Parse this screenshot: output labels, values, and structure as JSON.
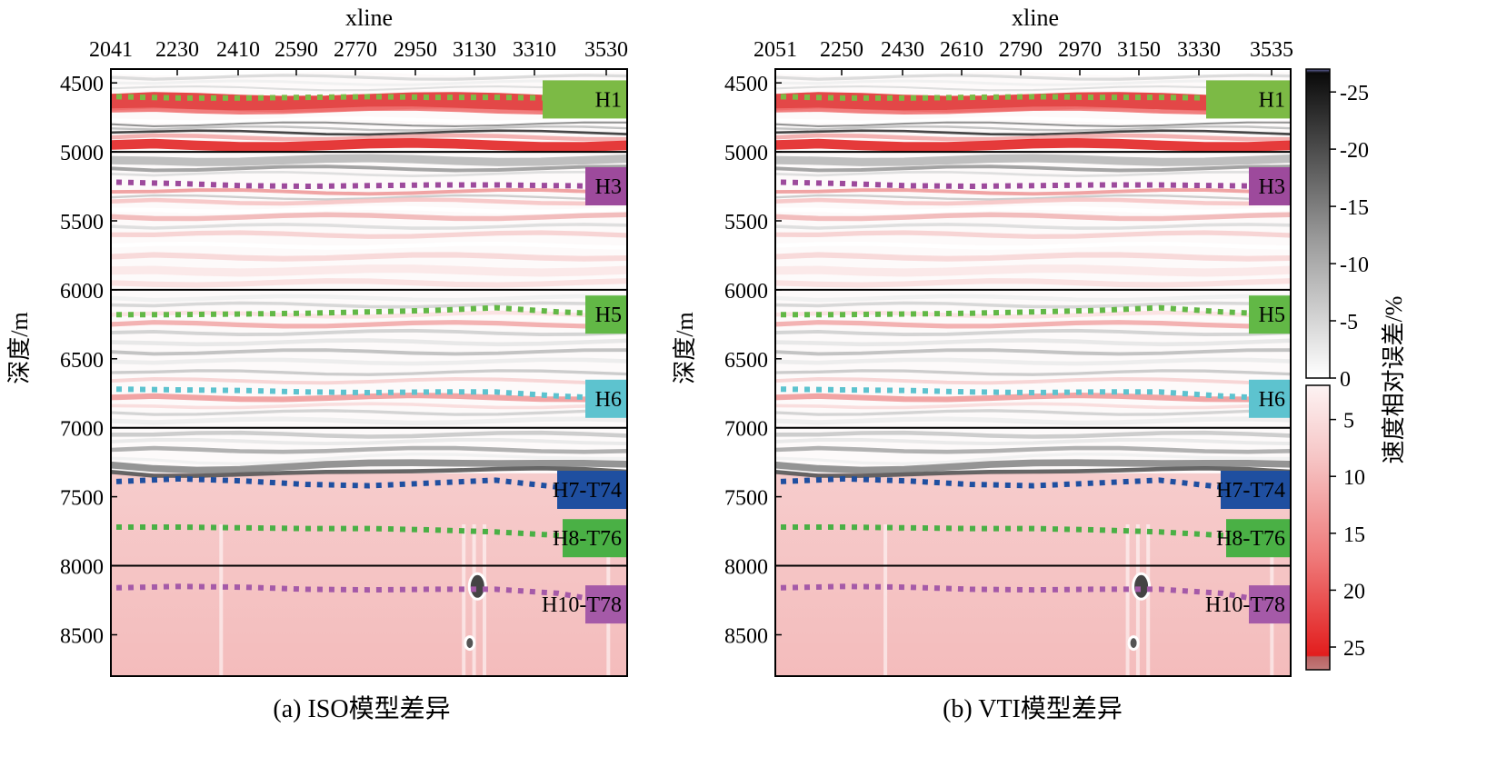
{
  "figure": {
    "cb_label": "速度相对误差/%"
  },
  "chart_data": [
    {
      "type": "heatmap",
      "panel": "a",
      "caption": "(a) ISO模型差异",
      "xlabel": "xline",
      "ylabel": "深度/m",
      "x_ticks": [
        "2041",
        "2230",
        "2410",
        "2590",
        "2770",
        "2950",
        "3130",
        "3310",
        "3530"
      ],
      "y_ticks": [
        "4500",
        "5000",
        "5500",
        "6000",
        "6500",
        "7000",
        "7500",
        "8000",
        "8500"
      ],
      "xlim": [
        2041,
        3575
      ],
      "ylim": [
        4400,
        8800
      ],
      "section_lines_depth_m": [
        5000,
        6000,
        7000,
        8000
      ],
      "horizons": [
        {
          "label": "H1",
          "color": "#7cba45",
          "depth": [
            4600,
            4610,
            4610,
            4605,
            4600,
            4605,
            4605,
            4610,
            4620
          ]
        },
        {
          "label": "H3",
          "color": "#9d4a9c",
          "depth": [
            5220,
            5230,
            5245,
            5250,
            5245,
            5240,
            5240,
            5245,
            5250
          ]
        },
        {
          "label": "H5",
          "color": "#62b846",
          "depth": [
            6180,
            6180,
            6175,
            6170,
            6160,
            6150,
            6130,
            6160,
            6180
          ]
        },
        {
          "label": "H6",
          "color": "#5dc3cf",
          "depth": [
            6720,
            6725,
            6730,
            6740,
            6745,
            6740,
            6740,
            6770,
            6790
          ]
        },
        {
          "label": "H7-T74",
          "color": "#1f4fa0",
          "depth": [
            7390,
            7370,
            7385,
            7410,
            7420,
            7400,
            7380,
            7430,
            7450
          ]
        },
        {
          "label": "H8-T76",
          "color": "#4ab045",
          "depth": [
            7720,
            7720,
            7725,
            7730,
            7730,
            7740,
            7755,
            7780,
            7800
          ]
        },
        {
          "label": "H10-T78",
          "color": "#a55aa8",
          "depth": [
            8160,
            8150,
            8155,
            8170,
            8175,
            8170,
            8170,
            8200,
            8280
          ]
        }
      ]
    },
    {
      "type": "heatmap",
      "panel": "b",
      "caption": "(b) VTI模型差异",
      "xlabel": "xline",
      "ylabel": "深度/m",
      "x_ticks": [
        "2051",
        "2250",
        "2430",
        "2610",
        "2790",
        "2970",
        "3150",
        "3330",
        "3535"
      ],
      "y_ticks": [
        "4500",
        "5000",
        "5500",
        "6000",
        "6500",
        "7000",
        "7500",
        "8000",
        "8500"
      ],
      "xlim": [
        2051,
        3575
      ],
      "ylim": [
        4400,
        8800
      ],
      "section_lines_depth_m": [
        5000,
        6000,
        7000,
        8000
      ],
      "horizons": [
        {
          "label": "H1",
          "color": "#7cba45",
          "depth": [
            4600,
            4610,
            4610,
            4605,
            4600,
            4605,
            4605,
            4610,
            4620
          ]
        },
        {
          "label": "H3",
          "color": "#9d4a9c",
          "depth": [
            5220,
            5230,
            5245,
            5250,
            5245,
            5240,
            5240,
            5245,
            5250
          ]
        },
        {
          "label": "H5",
          "color": "#62b846",
          "depth": [
            6180,
            6180,
            6175,
            6170,
            6160,
            6150,
            6130,
            6160,
            6180
          ]
        },
        {
          "label": "H6",
          "color": "#5dc3cf",
          "depth": [
            6720,
            6725,
            6730,
            6740,
            6745,
            6740,
            6740,
            6770,
            6790
          ]
        },
        {
          "label": "H7-T74",
          "color": "#1f4fa0",
          "depth": [
            7390,
            7370,
            7385,
            7410,
            7420,
            7400,
            7380,
            7430,
            7450
          ]
        },
        {
          "label": "H8-T76",
          "color": "#4ab045",
          "depth": [
            7720,
            7720,
            7725,
            7730,
            7730,
            7740,
            7755,
            7780,
            7800
          ]
        },
        {
          "label": "H10-T78",
          "color": "#a55aa8",
          "depth": [
            8160,
            8150,
            8155,
            8170,
            8175,
            8170,
            8170,
            8200,
            8280
          ]
        }
      ]
    },
    {
      "type": "colorbar",
      "label": "速度相对误差/%",
      "negative_scale": {
        "ticks": [
          "-25",
          "-20",
          "-15",
          "-10",
          "-5",
          "0"
        ],
        "range": [
          -27,
          0
        ],
        "colors": [
          "#1a1a1a",
          "#ffffff"
        ]
      },
      "positive_scale": {
        "ticks": [
          "5",
          "10",
          "15",
          "20",
          "25"
        ],
        "range": [
          2,
          27
        ],
        "colors": [
          "#ffffff",
          "#e62222"
        ]
      }
    }
  ]
}
